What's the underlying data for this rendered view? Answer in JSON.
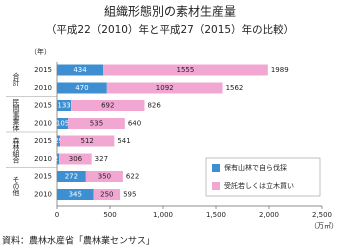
{
  "chart_data": {
    "type": "stacked-bar-horizontal",
    "title": "組織形態別の素材生産量",
    "subtitle": "（平成22（2010）年と平成27（2015）年の比較）",
    "y_label": "（年）",
    "x_label": "（万㎥）",
    "source": "資料：農林水産省「農林業センサス」",
    "groups": [
      "合計",
      "民間事業体",
      "森林組合",
      "その他"
    ],
    "categories": [
      "2015",
      "2010",
      "2015",
      "2010",
      "2015",
      "2010",
      "2015",
      "2010"
    ],
    "series": [
      {
        "name": "保有山林で自ら伐採",
        "color": "#3d8fd1",
        "values": [
          434,
          470,
          133,
          105,
          29,
          21,
          272,
          345
        ]
      },
      {
        "name": "受託若しくは立木買い",
        "color": "#f2a7d3",
        "values": [
          1555,
          1092,
          692,
          535,
          512,
          306,
          350,
          250
        ]
      }
    ],
    "totals": [
      1989,
      1562,
      826,
      640,
      541,
      327,
      622,
      595
    ],
    "xlim": [
      0,
      2500
    ],
    "xticks": [
      0,
      500,
      {
        "value": 1000,
        "label": "1,000"
      },
      {
        "value": 1500,
        "label": "1,500"
      },
      {
        "value": 2000,
        "label": "2,000"
      },
      {
        "value": 2500,
        "label": "2,500"
      }
    ],
    "legend": "lower right"
  }
}
